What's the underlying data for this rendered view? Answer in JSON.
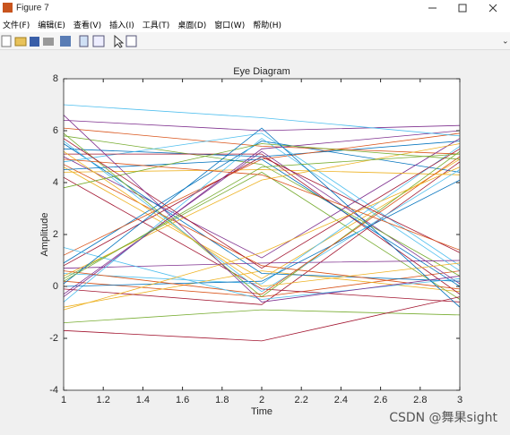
{
  "window": {
    "title": "Figure 7",
    "menu": [
      "文件(F)",
      "编辑(E)",
      "查看(V)",
      "插入(I)",
      "工具(T)",
      "桌面(D)",
      "窗口(W)",
      "帮助(H)"
    ]
  },
  "watermark": "CSDN @舞果sight",
  "chart_data": {
    "type": "line",
    "title": "Eye Diagram",
    "xlabel": "Time",
    "ylabel": "Amplitude",
    "x": [
      1,
      2,
      3
    ],
    "xlim": [
      1,
      3
    ],
    "xticks": [
      1,
      1.2,
      1.4,
      1.6,
      1.8,
      2,
      2.2,
      2.4,
      2.6,
      2.8,
      3
    ],
    "ylim": [
      -4,
      8
    ],
    "yticks": [
      -4,
      -2,
      0,
      2,
      4,
      6,
      8
    ],
    "grid": false,
    "series": [
      {
        "color": "#0072bd",
        "values": [
          5.3,
          5.0,
          5.6
        ]
      },
      {
        "color": "#d95319",
        "values": [
          0.2,
          -0.4,
          0.6
        ]
      },
      {
        "color": "#edb120",
        "values": [
          4.6,
          0.3,
          4.9
        ]
      },
      {
        "color": "#7e2f8e",
        "values": [
          -0.3,
          5.2,
          0.1
        ]
      },
      {
        "color": "#77ac30",
        "values": [
          5.8,
          4.7,
          0.4
        ]
      },
      {
        "color": "#4dbeee",
        "values": [
          0.5,
          0.1,
          5.4
        ]
      },
      {
        "color": "#a2142f",
        "values": [
          4.2,
          -0.1,
          -0.6
        ]
      },
      {
        "color": "#0072bd",
        "values": [
          0.9,
          5.6,
          4.4
        ]
      },
      {
        "color": "#d95319",
        "values": [
          6.1,
          5.4,
          5.1
        ]
      },
      {
        "color": "#edb120",
        "values": [
          -0.8,
          0.6,
          -0.2
        ]
      },
      {
        "color": "#7e2f8e",
        "values": [
          5.0,
          1.1,
          5.7
        ]
      },
      {
        "color": "#77ac30",
        "values": [
          0.3,
          4.4,
          -0.5
        ]
      },
      {
        "color": "#4dbeee",
        "values": [
          4.8,
          5.9,
          0.8
        ]
      },
      {
        "color": "#a2142f",
        "values": [
          -0.1,
          -0.7,
          4.8
        ]
      },
      {
        "color": "#0072bd",
        "values": [
          5.5,
          0.5,
          0.2
        ]
      },
      {
        "color": "#d95319",
        "values": [
          1.2,
          4.9,
          5.9
        ]
      },
      {
        "color": "#edb120",
        "values": [
          4.4,
          4.5,
          4.3
        ]
      },
      {
        "color": "#7e2f8e",
        "values": [
          0.7,
          0.9,
          1.0
        ]
      },
      {
        "color": "#77ac30",
        "values": [
          5.9,
          -0.4,
          5.2
        ]
      },
      {
        "color": "#4dbeee",
        "values": [
          -0.6,
          5.7,
          0.6
        ]
      },
      {
        "color": "#a2142f",
        "values": [
          5.1,
          5.1,
          -0.3
        ]
      },
      {
        "color": "#0072bd",
        "values": [
          0.0,
          0.2,
          4.1
        ]
      },
      {
        "color": "#d95319",
        "values": [
          4.7,
          0.8,
          -0.1
        ]
      },
      {
        "color": "#edb120",
        "values": [
          0.4,
          4.1,
          5.5
        ]
      },
      {
        "color": "#7e2f8e",
        "values": [
          6.4,
          6.0,
          6.2
        ]
      },
      {
        "color": "#77ac30",
        "values": [
          -1.4,
          -0.9,
          -1.1
        ]
      },
      {
        "color": "#4dbeee",
        "values": [
          5.6,
          -0.2,
          4.5
        ]
      },
      {
        "color": "#a2142f",
        "values": [
          0.8,
          5.0,
          1.3
        ]
      },
      {
        "color": "#0072bd",
        "values": [
          4.5,
          4.9,
          0.0
        ]
      },
      {
        "color": "#d95319",
        "values": [
          0.6,
          -0.3,
          5.0
        ]
      },
      {
        "color": "#edb120",
        "values": [
          5.2,
          0.0,
          0.9
        ]
      },
      {
        "color": "#7e2f8e",
        "values": [
          -0.4,
          5.3,
          6.0
        ]
      },
      {
        "color": "#77ac30",
        "values": [
          3.8,
          5.5,
          4.9
        ]
      },
      {
        "color": "#4dbeee",
        "values": [
          1.5,
          -0.5,
          0.3
        ]
      },
      {
        "color": "#a2142f",
        "values": [
          5.7,
          0.7,
          5.3
        ]
      },
      {
        "color": "#0072bd",
        "values": [
          0.1,
          6.1,
          -0.8
        ]
      },
      {
        "color": "#d95319",
        "values": [
          4.9,
          4.3,
          1.4
        ]
      },
      {
        "color": "#edb120",
        "values": [
          -0.9,
          1.3,
          4.6
        ]
      },
      {
        "color": "#7e2f8e",
        "values": [
          6.6,
          -0.6,
          0.4
        ]
      },
      {
        "color": "#77ac30",
        "values": [
          0.2,
          4.6,
          5.1
        ]
      },
      {
        "color": "#4dbeee",
        "values": [
          7.0,
          6.5,
          5.8
        ]
      },
      {
        "color": "#a2142f",
        "values": [
          -1.7,
          -2.1,
          -0.4
        ]
      }
    ]
  }
}
